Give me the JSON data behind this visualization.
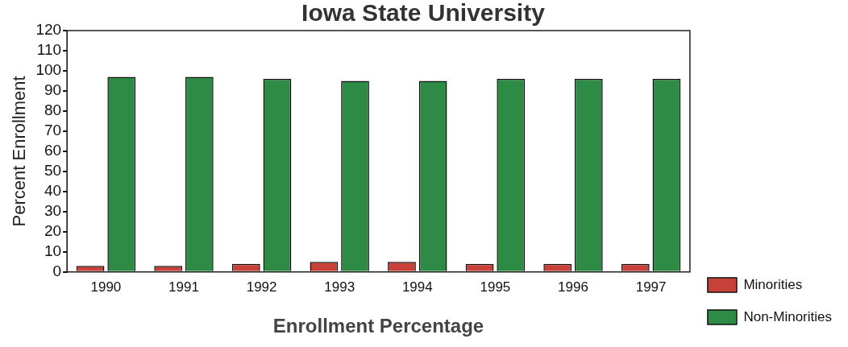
{
  "chart_data": {
    "type": "bar",
    "title": "Iowa State University",
    "xlabel": "Enrollment Percentage",
    "ylabel": "Percent Enrollment",
    "categories": [
      "1990",
      "1991",
      "1992",
      "1993",
      "1994",
      "1995",
      "1996",
      "1997"
    ],
    "series": [
      {
        "name": "Minorities",
        "color": "#c8423a",
        "values": [
          3,
          3,
          4,
          5,
          5,
          4,
          4,
          4
        ]
      },
      {
        "name": "Non-Minorities",
        "color": "#2e8b45",
        "values": [
          97,
          97,
          96,
          95,
          95,
          96,
          96,
          96
        ]
      }
    ],
    "ylim": [
      0,
      120
    ],
    "yticks": [
      0,
      10,
      20,
      30,
      40,
      50,
      60,
      70,
      80,
      90,
      100,
      110,
      120
    ],
    "grid": false,
    "legend": "right"
  }
}
